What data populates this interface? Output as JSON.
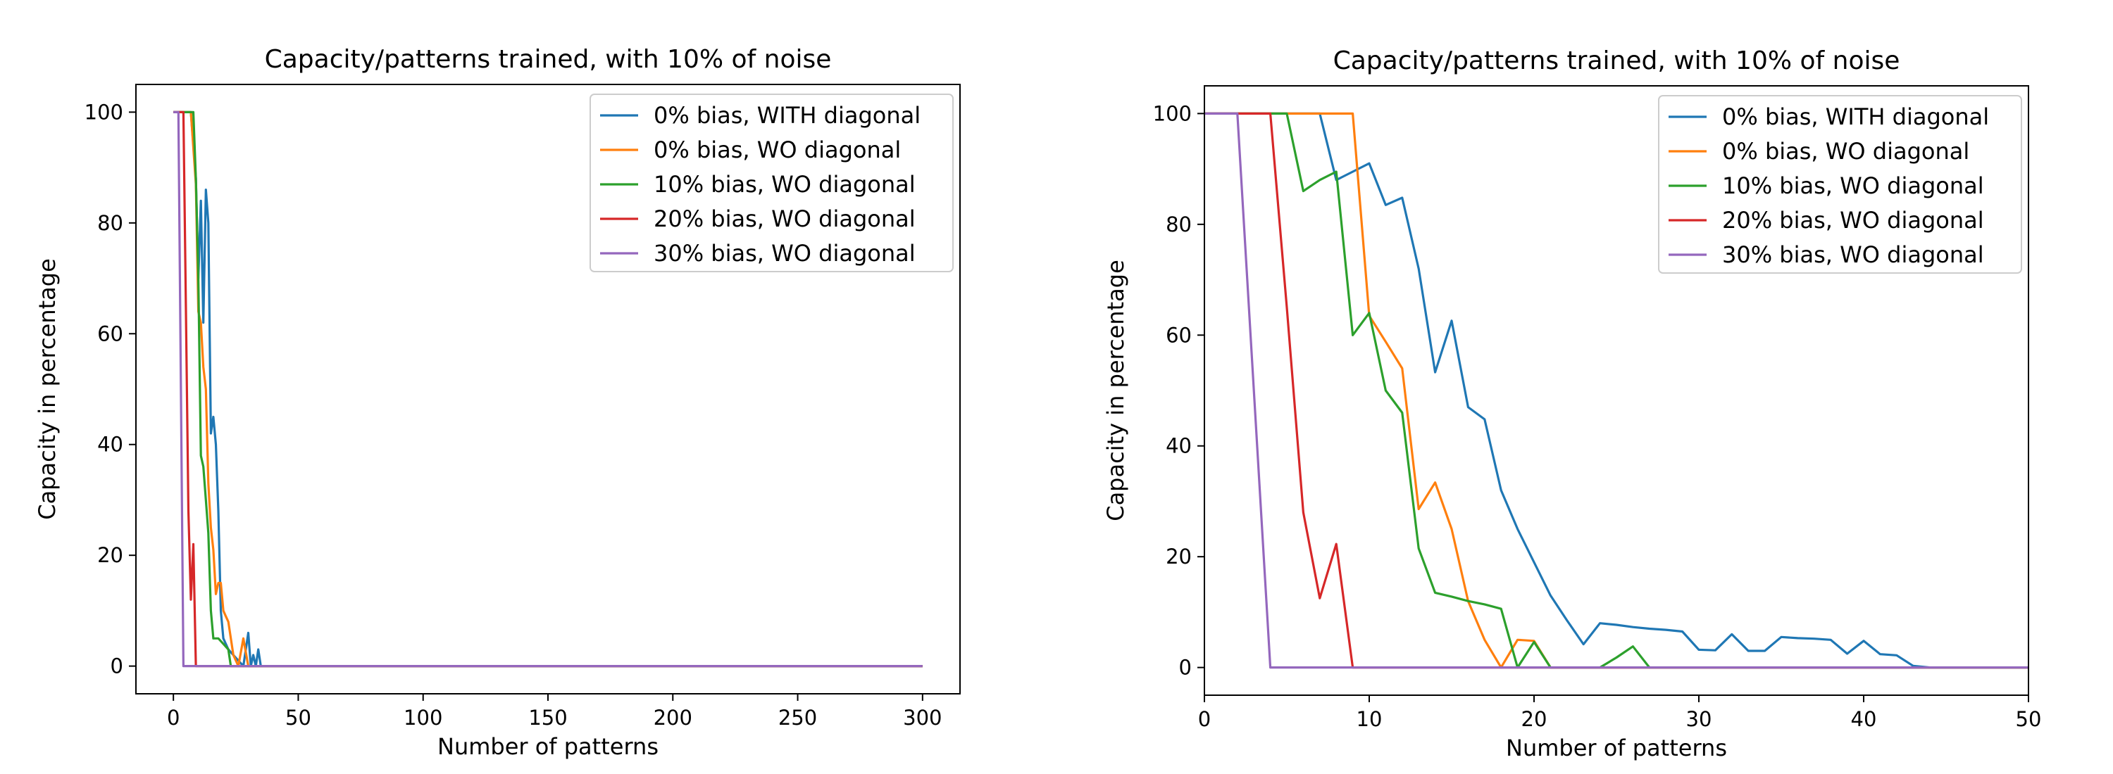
{
  "chart_data": [
    {
      "type": "line",
      "title": "Capacity/patterns trained, with 10% of noise",
      "xlabel": "Number of patterns",
      "ylabel": "Capacity in percentage",
      "xlim": [
        -15,
        315
      ],
      "ylim": [
        -5,
        105
      ],
      "xticks": [
        0,
        50,
        100,
        150,
        200,
        250,
        300
      ],
      "yticks": [
        0,
        20,
        40,
        60,
        80,
        100
      ],
      "grid": false,
      "legend_position": "top-right",
      "series": [
        {
          "name": "0% bias, WITH diagonal",
          "color": "#1f77b4",
          "x": [
            0,
            3,
            5,
            7,
            9,
            10,
            11,
            12,
            13,
            14,
            15,
            16,
            17,
            18,
            19,
            20,
            22,
            24,
            26,
            28,
            30,
            31,
            32,
            33,
            34,
            35,
            300
          ],
          "y": [
            100,
            100,
            100,
            100,
            88,
            70,
            84,
            62,
            86,
            80,
            42,
            45,
            40,
            28,
            10,
            5,
            3,
            2,
            1,
            0,
            6,
            0,
            2,
            0,
            3,
            0,
            0
          ]
        },
        {
          "name": "0% bias, WO diagonal",
          "color": "#ff7f0e",
          "x": [
            0,
            3,
            5,
            7,
            9,
            10,
            11,
            12,
            13,
            14,
            15,
            16,
            17,
            18,
            19,
            20,
            21,
            22,
            24,
            26,
            28,
            30,
            300
          ],
          "y": [
            100,
            100,
            100,
            100,
            87,
            64,
            62,
            54,
            50,
            33,
            25,
            21,
            13,
            15,
            15,
            10,
            9,
            8,
            2,
            0,
            5,
            0,
            0
          ]
        },
        {
          "name": "10% bias, WO diagonal",
          "color": "#2ca02c",
          "x": [
            0,
            3,
            5,
            6,
            7,
            8,
            9,
            10,
            11,
            12,
            13,
            14,
            15,
            16,
            17,
            18,
            20,
            22,
            23,
            24,
            300
          ],
          "y": [
            100,
            100,
            100,
            100,
            100,
            100,
            88,
            70,
            38,
            36,
            30,
            24,
            10,
            5,
            5,
            5,
            4,
            3,
            0,
            0,
            0
          ]
        },
        {
          "name": "20% bias, WO diagonal",
          "color": "#d62728",
          "x": [
            0,
            3,
            4,
            5,
            6,
            7,
            8,
            9,
            300
          ],
          "y": [
            100,
            100,
            100,
            65,
            28,
            12,
            22,
            0,
            0
          ]
        },
        {
          "name": "30% bias, WO diagonal",
          "color": "#9467bd",
          "x": [
            0,
            2,
            4,
            300
          ],
          "y": [
            100,
            100,
            0,
            0
          ]
        }
      ]
    },
    {
      "type": "line",
      "title": "Capacity/patterns trained, with 10% of noise",
      "xlabel": "Number of patterns",
      "ylabel": "Capacity in percentage",
      "xlim": [
        0,
        50
      ],
      "ylim": [
        -5,
        105
      ],
      "xticks": [
        0,
        10,
        20,
        30,
        40,
        50
      ],
      "yticks": [
        0,
        20,
        40,
        60,
        80,
        100
      ],
      "grid": false,
      "legend_position": "top-right",
      "series": [
        {
          "name": "0% bias, WITH diagonal",
          "color": "#1f77b4",
          "x": [
            0,
            2,
            4,
            5,
            6,
            7,
            8,
            9,
            10,
            11,
            12,
            13,
            14,
            15,
            16,
            17,
            18,
            19,
            20,
            21,
            22,
            23,
            24,
            25,
            26,
            27,
            28,
            29,
            30,
            31,
            32,
            33,
            34,
            35,
            36,
            37,
            38,
            39,
            40,
            41,
            42,
            43,
            44,
            45,
            46,
            47,
            48,
            49,
            50
          ],
          "y": [
            100,
            100,
            100,
            100,
            100,
            100,
            88,
            89.5,
            91,
            83.5,
            84.8,
            72,
            53.3,
            62.6,
            47,
            44.8,
            32,
            25,
            19,
            13,
            8.5,
            4.2,
            8,
            7.7,
            7.3,
            7,
            6.8,
            6.5,
            3.2,
            3.1,
            6,
            3,
            3,
            5.5,
            5.3,
            5.2,
            5,
            2.5,
            4.8,
            2.4,
            2.2,
            0.3,
            0,
            0,
            0,
            0,
            0,
            0,
            0
          ]
        },
        {
          "name": "0% bias, WO diagonal",
          "color": "#ff7f0e",
          "x": [
            0,
            2,
            4,
            5,
            6,
            7,
            8,
            9,
            10,
            11,
            12,
            13,
            14,
            15,
            16,
            17,
            18,
            19,
            20,
            21,
            22,
            30,
            40,
            50
          ],
          "y": [
            100,
            100,
            100,
            100,
            100,
            100,
            100,
            100,
            63.5,
            58.8,
            54,
            28.6,
            33.4,
            25,
            12,
            5,
            0,
            5,
            4.8,
            0,
            0,
            0,
            0,
            0
          ]
        },
        {
          "name": "10% bias, WO diagonal",
          "color": "#2ca02c",
          "x": [
            0,
            2,
            4,
            5,
            6,
            7,
            8,
            9,
            10,
            11,
            12,
            13,
            14,
            15,
            16,
            17,
            18,
            19,
            20,
            21,
            22,
            24,
            25,
            26,
            27,
            28,
            50
          ],
          "y": [
            100,
            100,
            100,
            100,
            86,
            88,
            89.5,
            60,
            64,
            50,
            46,
            21.5,
            13.5,
            12.8,
            12,
            11.4,
            10.6,
            0,
            4.6,
            0,
            0,
            0,
            1.8,
            3.8,
            0,
            0,
            0
          ]
        },
        {
          "name": "20% bias, WO diagonal",
          "color": "#d62728",
          "x": [
            0,
            2,
            4,
            5,
            6,
            7,
            8,
            9,
            10,
            50
          ],
          "y": [
            100,
            100,
            100,
            65,
            28,
            12.5,
            22.3,
            0,
            0,
            0
          ]
        },
        {
          "name": "30% bias, WO diagonal",
          "color": "#9467bd",
          "x": [
            0,
            2,
            4,
            5,
            50
          ],
          "y": [
            100,
            100,
            0,
            0,
            0
          ]
        }
      ]
    }
  ]
}
